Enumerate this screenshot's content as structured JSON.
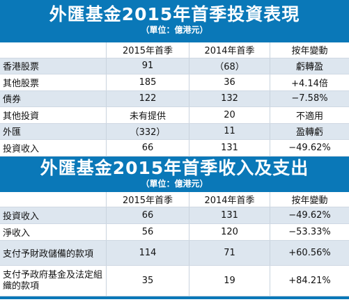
{
  "section1": {
    "title": "外匯基金2015年首季投資表現",
    "unit": "（單位：億港元）",
    "headers": [
      "",
      "2015年首季",
      "2014年首季",
      "按年變動"
    ],
    "rows": [
      [
        "香港股票",
        "91",
        "（68）",
        "虧轉盈"
      ],
      [
        "其他股票",
        "185",
        "36",
        "+4.14倍"
      ],
      [
        "債券",
        "122",
        "132",
        "−7.58%"
      ],
      [
        "其他投資",
        "未有提供",
        "20",
        "不適用"
      ],
      [
        "外匯",
        "（332）",
        "11",
        "盈轉虧"
      ],
      [
        "投資收入",
        "66",
        "131",
        "−49.62%"
      ]
    ]
  },
  "section2": {
    "title": "外匯基金2015年首季收入及支出",
    "unit": "（單位：億港元）",
    "headers": [
      "",
      "2015年首季",
      "2014年首季",
      "按年變動"
    ],
    "rows": [
      [
        "投資收入",
        "66",
        "131",
        "−49.62%"
      ],
      [
        "淨收入",
        "56",
        "120",
        "−53.33%"
      ],
      [
        "支付予財政儲備的款項",
        "114",
        "71",
        "+60.56%"
      ],
      [
        "支付予政府基金及法定組織的款項",
        "35",
        "19",
        "+84.21%"
      ]
    ]
  },
  "colors": {
    "banner": "#0a78b8",
    "stripe": "#dde6ef"
  }
}
